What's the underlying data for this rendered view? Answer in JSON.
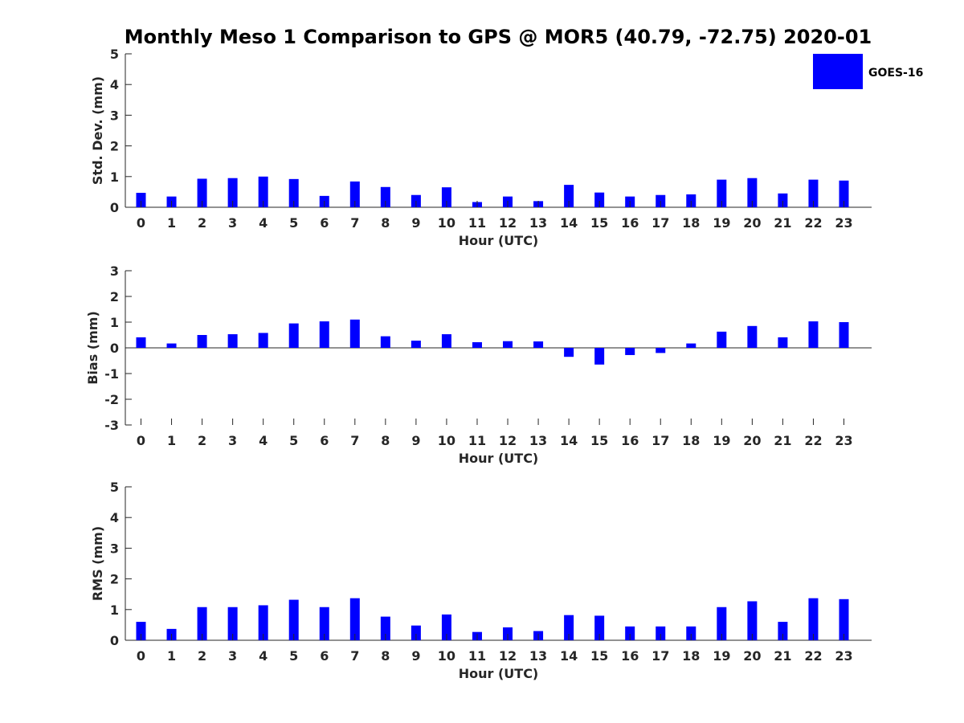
{
  "title": "Monthly Meso 1 Comparison to GPS @ MOR5 (40.79, -72.75) 2020-01",
  "legend": {
    "label": "GOES-16",
    "color": "#0000FF"
  },
  "bar_color": "#0000FF",
  "chart_data": [
    {
      "type": "bar",
      "name": "std-dev",
      "ylabel": "Std. Dev. (mm)",
      "xlabel": "Hour (UTC)",
      "categories": [
        "0",
        "1",
        "2",
        "3",
        "4",
        "5",
        "6",
        "7",
        "8",
        "9",
        "10",
        "11",
        "12",
        "13",
        "14",
        "15",
        "16",
        "17",
        "18",
        "19",
        "20",
        "21",
        "22",
        "23"
      ],
      "values": [
        0.47,
        0.35,
        0.93,
        0.95,
        1.0,
        0.92,
        0.37,
        0.84,
        0.66,
        0.4,
        0.65,
        0.17,
        0.35,
        0.2,
        0.73,
        0.48,
        0.35,
        0.4,
        0.42,
        0.9,
        0.95,
        0.45,
        0.9,
        0.87
      ],
      "ylim": [
        0,
        5
      ],
      "yticks": [
        "0",
        "1",
        "2",
        "3",
        "4",
        "5"
      ],
      "legend_position": "top-right"
    },
    {
      "type": "bar",
      "name": "bias",
      "ylabel": "Bias (mm)",
      "xlabel": "Hour (UTC)",
      "categories": [
        "0",
        "1",
        "2",
        "3",
        "4",
        "5",
        "6",
        "7",
        "8",
        "9",
        "10",
        "11",
        "12",
        "13",
        "14",
        "15",
        "16",
        "17",
        "18",
        "19",
        "20",
        "21",
        "22",
        "23"
      ],
      "values": [
        0.41,
        0.17,
        0.5,
        0.53,
        0.58,
        0.95,
        1.03,
        1.1,
        0.45,
        0.28,
        0.53,
        0.22,
        0.26,
        0.25,
        -0.35,
        -0.65,
        -0.28,
        -0.2,
        0.17,
        0.63,
        0.85,
        0.41,
        1.03,
        1.0
      ],
      "ylim": [
        -3,
        3
      ],
      "yticks": [
        "-3",
        "-2",
        "-1",
        "0",
        "1",
        "2",
        "3"
      ],
      "zero_line": true
    },
    {
      "type": "bar",
      "name": "rms",
      "ylabel": "RMS (mm)",
      "xlabel": "Hour (UTC)",
      "categories": [
        "0",
        "1",
        "2",
        "3",
        "4",
        "5",
        "6",
        "7",
        "8",
        "9",
        "10",
        "11",
        "12",
        "13",
        "14",
        "15",
        "16",
        "17",
        "18",
        "19",
        "20",
        "21",
        "22",
        "23"
      ],
      "values": [
        0.6,
        0.37,
        1.08,
        1.08,
        1.14,
        1.32,
        1.08,
        1.37,
        0.77,
        0.48,
        0.84,
        0.27,
        0.42,
        0.3,
        0.82,
        0.8,
        0.45,
        0.45,
        0.45,
        1.08,
        1.27,
        0.6,
        1.37,
        1.34
      ],
      "ylim": [
        0,
        5
      ],
      "yticks": [
        "0",
        "1",
        "2",
        "3",
        "4",
        "5"
      ]
    }
  ]
}
